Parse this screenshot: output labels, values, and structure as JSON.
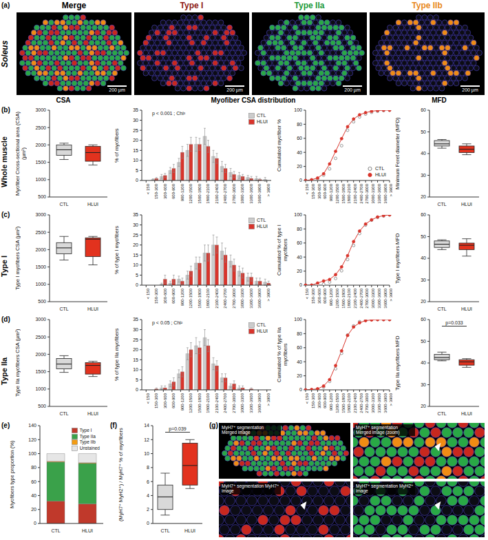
{
  "panel_a": {
    "letter": "(a)",
    "row_label": "Soleus",
    "images": [
      {
        "title": "Merge",
        "color": "#000000",
        "scale_bar": "200 µm"
      },
      {
        "title": "Type I",
        "color": "#8e1b14",
        "scale_bar": "200 µm"
      },
      {
        "title": "Type IIa",
        "color": "#1d9a3a",
        "scale_bar": "200 µm"
      },
      {
        "title": "Type IIb",
        "color": "#e8891c",
        "scale_bar": "200 µm"
      }
    ]
  },
  "column_heads": [
    "CSA",
    "Myofiber CSA distribution",
    "MFD"
  ],
  "rows": [
    {
      "letter": "(b)",
      "label": "Whole muscle"
    },
    {
      "letter": "(c)",
      "label": "Type I"
    },
    {
      "letter": "(d)",
      "label": "Type IIa"
    }
  ],
  "chart_data": [
    {
      "type": "box",
      "ylabel": "Myofiber Cross-sectional area (CSA) (µm²)",
      "categories": [
        "CTL",
        "HLUI"
      ],
      "colors": [
        "#d9d9d9",
        "#e2321e"
      ],
      "stats": [
        {
          "min": 1580,
          "q1": 1700,
          "median": 1860,
          "q3": 2000,
          "max": 2050
        },
        {
          "min": 1420,
          "q1": 1530,
          "median": 1780,
          "q3": 1960,
          "max": 2000
        }
      ],
      "ylim": [
        500,
        3000
      ],
      "yticks": [
        500,
        1000,
        1500,
        2000,
        2500,
        3000
      ]
    },
    {
      "type": "bar",
      "ylabel": "% of myofibers",
      "annotation": "p < 0.001 ; Chi²",
      "categories": [
        "< 150",
        "150-300",
        "300-600",
        "600-900",
        "900-1200",
        "1200-1500",
        "1500-1800",
        "1800-2100",
        "2100-2400",
        "2400-2700",
        "2700-3000",
        "3000-3300",
        "3300-3600",
        "3600-3900",
        "> 3900"
      ],
      "series": [
        {
          "name": "CTL",
          "color": "#cccccc",
          "values": [
            0,
            0.5,
            2,
            5,
            9,
            15,
            18,
            22,
            12,
            7,
            4,
            2.5,
            1.5,
            1,
            0.5
          ],
          "errors": [
            0,
            0.3,
            1,
            1.5,
            2,
            3,
            3.5,
            4,
            3,
            2.5,
            2,
            1.5,
            1,
            1,
            1
          ]
        },
        {
          "name": "HLUI",
          "color": "#d9342b",
          "values": [
            0,
            1,
            2.5,
            6,
            14,
            18,
            18,
            17,
            11,
            6,
            3,
            2,
            1,
            0.5,
            0
          ],
          "errors": [
            0,
            0.5,
            1,
            2,
            3,
            3.5,
            3,
            3,
            2.5,
            2,
            1.5,
            1,
            1,
            0.5,
            0
          ]
        }
      ],
      "ylim": [
        0,
        35
      ],
      "yticks": [
        0,
        5,
        10,
        15,
        20,
        25,
        30,
        35
      ],
      "legend": "top-right"
    },
    {
      "type": "line",
      "ylabel": "Cumulated myofiber %",
      "categories": [
        "< 150",
        "150-300",
        "300-600",
        "600-900",
        "900-1200",
        "1200-1500",
        "1500-1800",
        "1800-2100",
        "2100-2400",
        "2400-2700",
        "2700-3000",
        "3000-3300",
        "3300-3600",
        "3600-3900",
        "> 3900"
      ],
      "series": [
        {
          "name": "CTL",
          "color": "#808080",
          "marker": "open_circle",
          "line_style": "none",
          "values": [
            0,
            0.5,
            2.5,
            7.5,
            16.5,
            31.5,
            49.5,
            71.5,
            83.5,
            90.5,
            94.5,
            97,
            98.5,
            99.5,
            100
          ]
        },
        {
          "name": "HLUI",
          "color": "#d9342b",
          "marker": "circle",
          "line_style": "solid",
          "values": [
            0,
            1,
            3.5,
            9.5,
            23.5,
            41.5,
            59.5,
            76.5,
            87.5,
            93.5,
            96.5,
            98.5,
            99.5,
            100,
            100
          ]
        }
      ],
      "ylim": [
        0,
        100
      ],
      "yticks": [
        0,
        20,
        40,
        60,
        80,
        100
      ],
      "legend": "bottom-right"
    },
    {
      "type": "box",
      "ylabel": "Minimum Feret diameter (MFD)",
      "categories": [
        "CTL",
        "HLUI"
      ],
      "colors": [
        "#d9d9d9",
        "#e2321e"
      ],
      "stats": [
        {
          "min": 42.5,
          "q1": 43.5,
          "median": 44.5,
          "q3": 46,
          "max": 46.5
        },
        {
          "min": 39.5,
          "q1": 40.5,
          "median": 42,
          "q3": 43.5,
          "max": 44.5
        }
      ],
      "ylim": [
        20,
        60
      ],
      "yticks": [
        20,
        30,
        40,
        50,
        60
      ]
    },
    {
      "type": "box",
      "ylabel": "Type I myofibers CSA (µm²)",
      "categories": [
        "CTL",
        "HLUI"
      ],
      "colors": [
        "#d9d9d9",
        "#e2321e"
      ],
      "stats": [
        {
          "min": 1700,
          "q1": 1880,
          "median": 2050,
          "q3": 2200,
          "max": 2380
        },
        {
          "min": 1560,
          "q1": 1800,
          "median": 2300,
          "q3": 2340,
          "max": 2380
        }
      ],
      "ylim": [
        500,
        3000
      ],
      "yticks": [
        500,
        1000,
        1500,
        2000,
        2500,
        3000
      ]
    },
    {
      "type": "bar",
      "ylabel": "% of type I myofibers",
      "categories": [
        "< 150",
        "150-300",
        "300-600",
        "600-900",
        "900-1200",
        "1200-1500",
        "1500-1800",
        "1800-2100",
        "2100-2400",
        "2400-2700",
        "2700-3000",
        "3000-3300",
        "3300-3600",
        "3600-3900",
        "> 3900"
      ],
      "series": [
        {
          "name": "CTL",
          "color": "#cccccc",
          "values": [
            0,
            0,
            0.5,
            1,
            3,
            5,
            11,
            16,
            20,
            17,
            12,
            7,
            4,
            2,
            1.5
          ],
          "errors": [
            0,
            0,
            0.5,
            1,
            1.5,
            2,
            3,
            4,
            5,
            4,
            3,
            2.5,
            2,
            1.5,
            1.5
          ]
        },
        {
          "name": "HLUI",
          "color": "#d9342b",
          "values": [
            0,
            0,
            3,
            3,
            2,
            7,
            11,
            16,
            20,
            15,
            10,
            6,
            4,
            2,
            1
          ],
          "errors": [
            0,
            0,
            2,
            2,
            1.5,
            2.5,
            3,
            4,
            4,
            3.5,
            3,
            2.5,
            2,
            1.5,
            1
          ]
        }
      ],
      "ylim": [
        0,
        35
      ],
      "yticks": [
        0,
        5,
        10,
        15,
        20,
        25,
        30,
        35
      ],
      "legend": "top-right"
    },
    {
      "type": "line",
      "ylabel": "Cumulated % of type I myofibers",
      "categories": [
        "< 150",
        "150-300",
        "300-600",
        "600-900",
        "900-1200",
        "1200-1500",
        "1500-1800",
        "1800-2100",
        "2100-2400",
        "2400-2700",
        "2700-3000",
        "3000-3300",
        "3300-3600",
        "3600-3900",
        "> 3900"
      ],
      "series": [
        {
          "name": "CTL",
          "color": "#808080",
          "marker": "open_circle",
          "line_style": "none",
          "values": [
            0,
            0,
            0.5,
            1.5,
            4.5,
            9.5,
            20.5,
            36.5,
            56.5,
            73.5,
            85.5,
            92.5,
            96.5,
            98.5,
            100
          ]
        },
        {
          "name": "HLUI",
          "color": "#d9342b",
          "marker": "circle",
          "line_style": "solid",
          "values": [
            0,
            0,
            3,
            6,
            8,
            15,
            26,
            42,
            62,
            77,
            87,
            93,
            97,
            99,
            100
          ]
        }
      ],
      "ylim": [
        0,
        100
      ],
      "yticks": [
        0,
        20,
        40,
        60,
        80,
        100
      ]
    },
    {
      "type": "box",
      "ylabel": "Type I myofibers MFD",
      "categories": [
        "CTL",
        "HLUI"
      ],
      "colors": [
        "#d9d9d9",
        "#e2321e"
      ],
      "stats": [
        {
          "min": 44,
          "q1": 45,
          "median": 46.5,
          "q3": 48,
          "max": 48.5
        },
        {
          "min": 41,
          "q1": 44,
          "median": 46,
          "q3": 47,
          "max": 49
        }
      ],
      "ylim": [
        20,
        60
      ],
      "yticks": [
        20,
        30,
        40,
        50,
        60
      ]
    },
    {
      "type": "box",
      "ylabel": "Type IIa myofibers CSA (µm²)",
      "categories": [
        "CTL",
        "HLUI"
      ],
      "colors": [
        "#d9d9d9",
        "#e2321e"
      ],
      "stats": [
        {
          "min": 1480,
          "q1": 1580,
          "median": 1720,
          "q3": 1880,
          "max": 1960
        },
        {
          "min": 1360,
          "q1": 1430,
          "median": 1680,
          "q3": 1760,
          "max": 1800
        }
      ],
      "ylim": [
        500,
        3000
      ],
      "yticks": [
        500,
        1000,
        1500,
        2000,
        2500,
        3000
      ]
    },
    {
      "type": "bar",
      "ylabel": "% of type IIa myofibers",
      "annotation": "p < 0.05 ; Chi²",
      "categories": [
        "< 150",
        "150-300",
        "300-600",
        "600-900",
        "900-1200",
        "1200-1500",
        "1500-1800",
        "1800-2100",
        "2100-2400",
        "2400-2700",
        "2700-3000",
        "3000-3300",
        "3300-3600",
        "3600-3900",
        "> 3900"
      ],
      "series": [
        {
          "name": "CTL",
          "color": "#cccccc",
          "values": [
            0,
            0,
            1,
            3,
            8,
            18,
            22,
            26,
            13,
            6,
            2,
            1,
            0,
            0,
            0
          ],
          "errors": [
            0,
            0,
            1,
            1.5,
            2,
            3,
            4,
            4,
            3,
            2,
            1,
            1,
            0,
            0,
            0
          ]
        },
        {
          "name": "HLUI",
          "color": "#d9342b",
          "values": [
            0,
            0.5,
            1,
            4,
            9,
            20,
            21,
            22,
            12,
            6,
            3,
            1,
            0.5,
            0,
            0
          ],
          "errors": [
            0,
            0.5,
            1,
            2,
            2.5,
            3.5,
            3,
            3,
            2.5,
            2,
            1.5,
            1,
            0.5,
            0,
            0
          ]
        }
      ],
      "ylim": [
        0,
        35
      ],
      "yticks": [
        0,
        5,
        10,
        15,
        20,
        25,
        30,
        35
      ],
      "legend": "top-right"
    },
    {
      "type": "line",
      "ylabel": "Cumulated % of type IIa myofibers",
      "categories": [
        "< 150",
        "150-300",
        "300-600",
        "600-900",
        "900-1200",
        "1200-1500",
        "1500-1800",
        "1800-2100",
        "2100-2400",
        "2400-2700",
        "2700-3000",
        "3000-3300",
        "3300-3600",
        "3600-3900",
        "> 3900"
      ],
      "series": [
        {
          "name": "CTL",
          "color": "#808080",
          "marker": "open_circle",
          "line_style": "none",
          "values": [
            0,
            0,
            1,
            4,
            12,
            30,
            52,
            78,
            91,
            97,
            99,
            100,
            100,
            100,
            100
          ]
        },
        {
          "name": "HLUI",
          "color": "#d9342b",
          "marker": "circle",
          "line_style": "solid",
          "values": [
            0,
            0.5,
            1.5,
            5.5,
            14.5,
            34.5,
            55.5,
            77.5,
            89.5,
            95.5,
            98.5,
            99.5,
            100,
            100,
            100
          ]
        }
      ],
      "ylim": [
        0,
        100
      ],
      "yticks": [
        0,
        20,
        40,
        60,
        80,
        100
      ]
    },
    {
      "type": "box",
      "ylabel": "Type IIa myofibers MFD",
      "annotation": "p=0.033",
      "categories": [
        "CTL",
        "HLUI"
      ],
      "colors": [
        "#d9d9d9",
        "#e2321e"
      ],
      "stats": [
        {
          "min": 41,
          "q1": 41.5,
          "median": 42.5,
          "q3": 44,
          "max": 45
        },
        {
          "min": 38,
          "q1": 39,
          "median": 40.5,
          "q3": 41.5,
          "max": 42
        }
      ],
      "ylim": [
        20,
        60
      ],
      "yticks": [
        20,
        30,
        40,
        50,
        60
      ]
    },
    {
      "type": "bar",
      "stacked": true,
      "panel": "(e)",
      "ylabel": "Myofibers type proportion (%)",
      "categories": [
        "CTL",
        "HLUI"
      ],
      "series": [
        {
          "name": "Type I",
          "color": "#c0392b",
          "values": [
            32,
            28
          ]
        },
        {
          "name": "Type IIa",
          "color": "#3aa14a",
          "values": [
            56,
            58
          ]
        },
        {
          "name": "Type IIb",
          "color": "#f39c12",
          "values": [
            1,
            1
          ]
        },
        {
          "name": "Unstained",
          "color": "#e6e6e6",
          "values": [
            11,
            13
          ]
        }
      ],
      "ylim": [
        0,
        140
      ],
      "yticks": [
        0,
        20,
        40,
        60,
        80,
        100,
        120,
        140
      ],
      "legend": "top-right"
    },
    {
      "type": "box",
      "panel": "(f)",
      "ylabel": "(MyH7⁺ MyH2⁺) / MyH7⁺ % of myofibers",
      "annotation": "p=0.039",
      "categories": [
        "CTL",
        "HLUI"
      ],
      "colors": [
        "#d9d9d9",
        "#e2321e"
      ],
      "stats": [
        {
          "min": 1.2,
          "q1": 2,
          "median": 3.8,
          "q3": 5.5,
          "max": 7.2
        },
        {
          "min": 5,
          "q1": 5.5,
          "median": 8.3,
          "q3": 11.5,
          "max": 12
        }
      ],
      "ylim": [
        0,
        14
      ],
      "yticks": [
        0,
        2,
        4,
        6,
        8,
        10,
        12,
        14
      ]
    }
  ],
  "panel_g": {
    "letter": "(g)",
    "images": [
      {
        "label": "MyH7⁺ segmentation Merged image"
      },
      {
        "label": "MyH7⁺ segmentation Merged image (zoom)"
      },
      {
        "label": "MyH7⁺ segmentation MyH7⁺ image"
      },
      {
        "label": "MyH7⁺ segmentation MyH2⁺ image"
      }
    ]
  }
}
